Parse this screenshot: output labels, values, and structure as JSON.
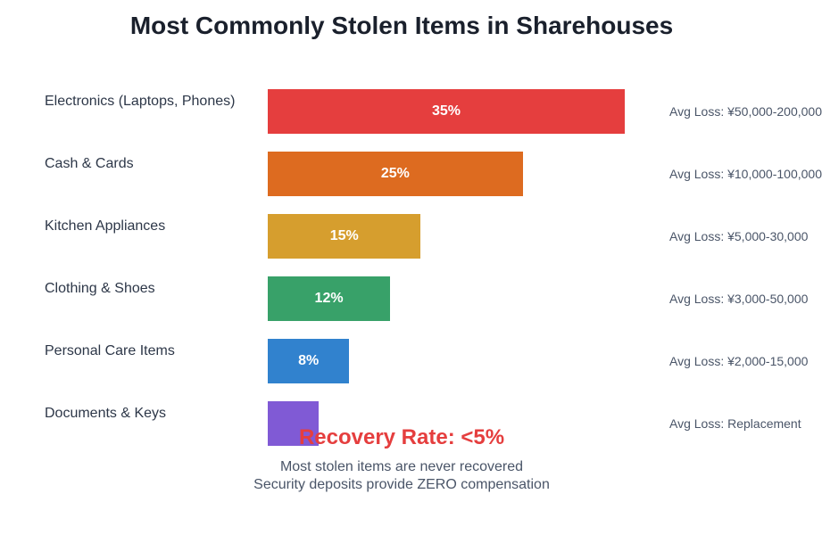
{
  "chart_data": {
    "type": "bar",
    "orientation": "horizontal",
    "title": "Most Commonly Stolen Items in Sharehouses",
    "categories": [
      "Electronics (Laptops, Phones)",
      "Cash & Cards",
      "Kitchen Appliances",
      "Clothing & Shoes",
      "Personal Care Items",
      "Documents & Keys"
    ],
    "values": [
      35,
      25,
      15,
      12,
      8,
      5
    ],
    "value_labels": [
      "35%",
      "25%",
      "15%",
      "12%",
      "8%",
      ""
    ],
    "colors": [
      "#e53e3e",
      "#dd6b20",
      "#d69e2e",
      "#38a169",
      "#3182ce",
      "#805ad5"
    ],
    "annotations": [
      "Avg Loss: ¥50,000-200,000",
      "Avg Loss: ¥10,000-100,000",
      "Avg Loss: ¥5,000-30,000",
      "Avg Loss: ¥3,000-50,000",
      "Avg Loss: ¥2,000-15,000",
      "Avg Loss: Replacement"
    ],
    "xlim": [
      0,
      35
    ],
    "grid": false
  },
  "footer": {
    "recovery": "Recovery Rate: <5%",
    "note1": "Most stolen items are never recovered",
    "note2": "Security deposits provide ZERO compensation"
  }
}
